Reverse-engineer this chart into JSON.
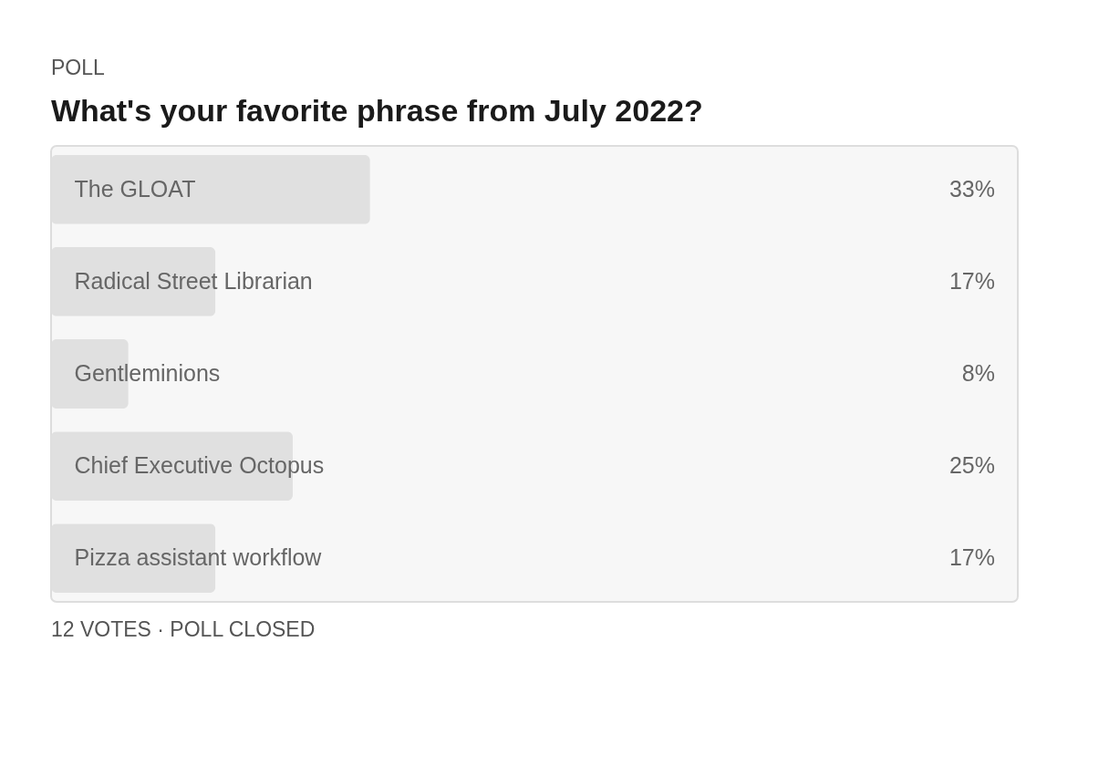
{
  "chart_data": {
    "type": "bar",
    "orientation": "horizontal",
    "title": "What's your favorite phrase from July 2022?",
    "categories": [
      "The GLOAT",
      "Radical Street Librarian",
      "Gentleminions",
      "Chief Executive Octopus",
      "Pizza assistant workflow"
    ],
    "values": [
      33,
      17,
      8,
      25,
      17
    ],
    "value_labels": [
      "33%",
      "17%",
      "8%",
      "25%",
      "17%"
    ],
    "color": "#e0e0e0",
    "xlim": [
      0,
      100
    ],
    "tick_labels": "y",
    "grid": false,
    "annotations": [
      "POLL",
      "12 VOTES · POLL CLOSED"
    ]
  }
}
